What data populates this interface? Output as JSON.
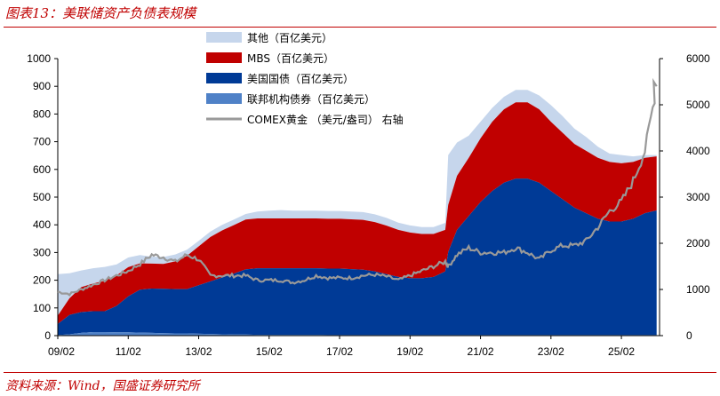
{
  "figure": {
    "title": "图表13：美联储资产负债表规模",
    "source": "资料来源：Wind，国盛证券研究所"
  },
  "colors": {
    "other": "#c6d6ec",
    "mbs": "#c00000",
    "treasury": "#003a96",
    "agency": "#4f81c7",
    "gold": "#999999",
    "accent": "#c00000"
  },
  "chart_data": {
    "type": "area",
    "x_tick_labels": [
      "09/02",
      "11/02",
      "13/02",
      "15/02",
      "17/02",
      "19/02",
      "21/02",
      "23/02",
      "25/02"
    ],
    "x": [
      "2009-02",
      "2009-06",
      "2009-10",
      "2010-02",
      "2010-06",
      "2010-10",
      "2011-02",
      "2011-06",
      "2011-10",
      "2012-02",
      "2012-06",
      "2012-10",
      "2013-02",
      "2013-06",
      "2013-10",
      "2014-02",
      "2014-06",
      "2014-10",
      "2015-02",
      "2015-06",
      "2015-10",
      "2016-02",
      "2016-06",
      "2016-10",
      "2017-02",
      "2017-06",
      "2017-10",
      "2018-02",
      "2018-06",
      "2018-10",
      "2019-02",
      "2019-06",
      "2019-10",
      "2020-02",
      "2020-03",
      "2020-06",
      "2020-10",
      "2021-02",
      "2021-06",
      "2021-10",
      "2022-02",
      "2022-06",
      "2022-10",
      "2023-02",
      "2023-06",
      "2023-10",
      "2024-02",
      "2024-06",
      "2024-10",
      "2025-02",
      "2025-06",
      "2025-10",
      "2026-02"
    ],
    "y_left": {
      "ticks": [
        0,
        100,
        200,
        300,
        400,
        500,
        600,
        700,
        800,
        900,
        1000
      ],
      "range": [
        0,
        1000
      ]
    },
    "y_right": {
      "ticks": [
        0,
        1000,
        2000,
        3000,
        4000,
        5000,
        6000
      ],
      "range": [
        0,
        6000
      ],
      "label": "右轴"
    },
    "series": [
      {
        "name": "联邦机构债券（百亿美元）",
        "axis": "left",
        "kind": "stacked-area",
        "values": [
          2,
          5,
          10,
          13,
          13,
          12,
          12,
          11,
          10,
          9,
          8,
          8,
          7,
          6,
          5,
          4,
          4,
          3,
          3,
          3,
          3,
          3,
          3,
          2,
          2,
          2,
          2,
          2,
          2,
          2,
          2,
          2,
          2,
          2,
          2,
          2,
          2,
          2,
          2,
          2,
          2,
          2,
          2,
          2,
          2,
          2,
          2,
          2,
          2,
          2,
          2,
          2,
          2
        ]
      },
      {
        "name": "美国国债（百亿美元）",
        "axis": "left",
        "kind": "stacked-area",
        "values": [
          40,
          70,
          75,
          75,
          75,
          95,
          130,
          155,
          160,
          160,
          160,
          160,
          175,
          190,
          205,
          220,
          235,
          240,
          240,
          240,
          240,
          240,
          240,
          240,
          240,
          238,
          236,
          230,
          220,
          210,
          205,
          205,
          210,
          230,
          300,
          380,
          430,
          480,
          520,
          550,
          565,
          565,
          550,
          520,
          490,
          460,
          440,
          420,
          410,
          410,
          420,
          440,
          450
        ]
      },
      {
        "name": "MBS（百亿美元）",
        "axis": "left",
        "kind": "stacked-area",
        "values": [
          30,
          60,
          90,
          100,
          110,
          110,
          105,
          95,
          90,
          90,
          100,
          120,
          140,
          160,
          170,
          175,
          180,
          180,
          180,
          180,
          180,
          180,
          180,
          180,
          180,
          180,
          180,
          178,
          175,
          170,
          165,
          160,
          155,
          150,
          170,
          195,
          210,
          230,
          250,
          265,
          275,
          275,
          265,
          250,
          240,
          230,
          225,
          220,
          215,
          210,
          205,
          200,
          195
        ]
      },
      {
        "name": "其他（百亿美元）",
        "axis": "left",
        "kind": "stacked-area",
        "values": [
          150,
          90,
          60,
          55,
          50,
          40,
          35,
          30,
          25,
          25,
          25,
          22,
          20,
          20,
          20,
          20,
          20,
          25,
          28,
          30,
          28,
          28,
          28,
          28,
          28,
          28,
          28,
          28,
          28,
          26,
          26,
          25,
          25,
          25,
          180,
          120,
          80,
          60,
          50,
          45,
          45,
          45,
          50,
          60,
          60,
          55,
          50,
          40,
          30,
          30,
          20,
          10,
          5
        ]
      },
      {
        "name": "COMEX黄金 （美元/盎司） 右轴",
        "axis": "right",
        "kind": "line",
        "values": [
          950,
          900,
          1000,
          1100,
          1200,
          1300,
          1400,
          1550,
          1750,
          1700,
          1600,
          1750,
          1650,
          1300,
          1300,
          1300,
          1300,
          1200,
          1200,
          1200,
          1150,
          1200,
          1300,
          1250,
          1250,
          1250,
          1300,
          1320,
          1280,
          1200,
          1300,
          1400,
          1500,
          1600,
          1500,
          1750,
          1900,
          1800,
          1800,
          1800,
          1900,
          1800,
          1650,
          1850,
          1950,
          1950,
          2050,
          2350,
          2700,
          2900,
          3350,
          4000,
          5400
        ]
      }
    ],
    "gold_spike": {
      "x": "2026-01",
      "value": 5500
    }
  },
  "legend": {
    "items": [
      {
        "label": "其他（百亿美元）",
        "color_key": "other",
        "kind": "area"
      },
      {
        "label": "MBS（百亿美元）",
        "color_key": "mbs",
        "kind": "area"
      },
      {
        "label": "美国国债（百亿美元）",
        "color_key": "treasury",
        "kind": "area"
      },
      {
        "label": "联邦机构债券（百亿美元）",
        "color_key": "agency",
        "kind": "area"
      },
      {
        "label": "COMEX黄金 （美元/盎司） 右轴",
        "color_key": "gold",
        "kind": "line"
      }
    ]
  }
}
